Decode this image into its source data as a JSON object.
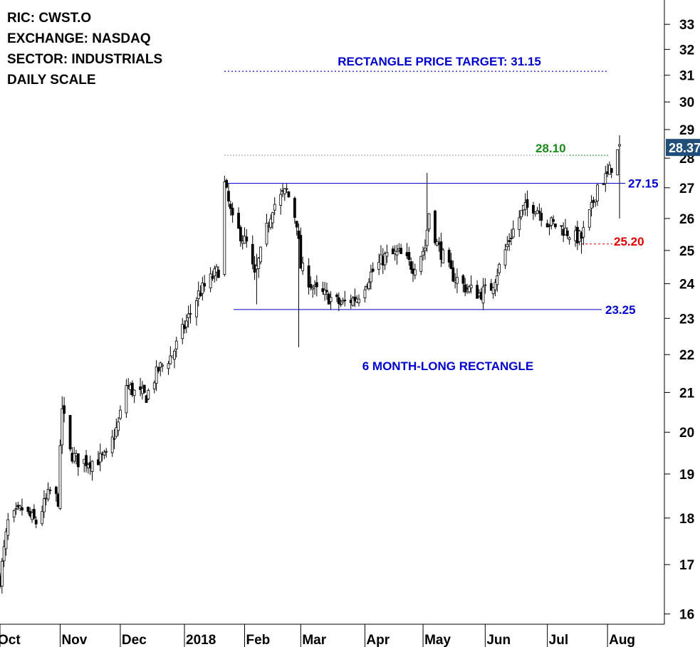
{
  "info": {
    "ric": "RIC: CWST.O",
    "exchange": "EXCHANGE: NASDAQ",
    "sector": "SECTOR: INDUSTRIALS",
    "scale": "DAILY SCALE"
  },
  "annotations": {
    "target_label": "RECTANGLE PRICE TARGET: 31.15",
    "pattern_label": "6 MONTH-LONG RECTANGLE",
    "resistance_label": "27.15",
    "support_label": "23.25",
    "level_28_label": "28.10",
    "level_25_label": "25.20",
    "last_price_label": "28.37"
  },
  "colors": {
    "blue": "#0000cc",
    "green": "#1a8a1a",
    "red": "#e00000",
    "last_price_bg": "#1f4e79",
    "candle": "#000000"
  },
  "chart_data": {
    "type": "candlestick",
    "title": "",
    "y_scale": "log",
    "ylim": [
      15.8,
      34.0
    ],
    "yticks": [
      16,
      17,
      18,
      19,
      20,
      21,
      22,
      23,
      24,
      25,
      26,
      27,
      28,
      29,
      30,
      31,
      32,
      33
    ],
    "x_labels": [
      "Oct",
      "Nov",
      "Dec",
      "2018",
      "Feb",
      "Mar",
      "Apr",
      "May",
      "Jun",
      "Jul",
      "Aug"
    ],
    "date_range": [
      "2017-10-02",
      "2018-08-07"
    ],
    "levels": {
      "price_target": 31.15,
      "resistance": 27.15,
      "support": 23.25,
      "level_green": 28.1,
      "level_red": 25.2,
      "last_price": 28.37
    },
    "price_path": [
      [
        "2017-10-02",
        16.7
      ],
      [
        "2017-10-06",
        17.9
      ],
      [
        "2017-10-13",
        18.2
      ],
      [
        "2017-10-20",
        17.9
      ],
      [
        "2017-10-27",
        18.6
      ],
      [
        "2017-10-31",
        18.4
      ],
      [
        "2017-11-02",
        20.6
      ],
      [
        "2017-11-06",
        19.5
      ],
      [
        "2017-11-10",
        19.3
      ],
      [
        "2017-11-17",
        19.3
      ],
      [
        "2017-11-24",
        19.4
      ],
      [
        "2017-11-30",
        20.2
      ],
      [
        "2017-12-04",
        21.2
      ],
      [
        "2017-12-08",
        21.0
      ],
      [
        "2017-12-14",
        20.9
      ],
      [
        "2017-12-20",
        21.6
      ],
      [
        "2017-12-27",
        22.0
      ],
      [
        "2018-01-03",
        22.9
      ],
      [
        "2018-01-09",
        23.7
      ],
      [
        "2018-01-16",
        24.2
      ],
      [
        "2018-01-19",
        24.4
      ],
      [
        "2018-01-22",
        27.1
      ],
      [
        "2018-01-26",
        25.9
      ],
      [
        "2018-02-02",
        25.2
      ],
      [
        "2018-02-06",
        24.2
      ],
      [
        "2018-02-09",
        24.9
      ],
      [
        "2018-02-15",
        26.4
      ],
      [
        "2018-02-22",
        26.9
      ],
      [
        "2018-02-27",
        25.9
      ],
      [
        "2018-03-01",
        24.5
      ],
      [
        "2018-03-08",
        23.8
      ],
      [
        "2018-03-15",
        23.6
      ],
      [
        "2018-03-21",
        23.4
      ],
      [
        "2018-03-29",
        23.6
      ],
      [
        "2018-04-05",
        24.3
      ],
      [
        "2018-04-12",
        24.8
      ],
      [
        "2018-04-19",
        24.9
      ],
      [
        "2018-04-26",
        24.5
      ],
      [
        "2018-05-02",
        25.1
      ],
      [
        "2018-05-04",
        26.2
      ],
      [
        "2018-05-08",
        25.2
      ],
      [
        "2018-05-15",
        24.3
      ],
      [
        "2018-05-22",
        23.9
      ],
      [
        "2018-05-29",
        23.7
      ],
      [
        "2018-06-04",
        23.9
      ],
      [
        "2018-06-08",
        24.5
      ],
      [
        "2018-06-14",
        25.5
      ],
      [
        "2018-06-20",
        26.3
      ],
      [
        "2018-06-26",
        26.4
      ],
      [
        "2018-07-02",
        25.9
      ],
      [
        "2018-07-09",
        25.7
      ],
      [
        "2018-07-16",
        25.4
      ],
      [
        "2018-07-19",
        25.4
      ],
      [
        "2018-07-24",
        26.3
      ],
      [
        "2018-07-27",
        27.1
      ],
      [
        "2018-08-01",
        27.4
      ],
      [
        "2018-08-06",
        28.2
      ],
      [
        "2018-08-07",
        28.37
      ]
    ],
    "spikes": [
      [
        "2017-11-02",
        20.9,
        19.6
      ],
      [
        "2018-01-22",
        27.4,
        25.8
      ],
      [
        "2018-02-07",
        24.9,
        23.4
      ],
      [
        "2018-02-28",
        25.1,
        22.2
      ],
      [
        "2018-05-03",
        27.5,
        25.1
      ],
      [
        "2018-07-19",
        25.6,
        24.9
      ],
      [
        "2018-08-07",
        28.8,
        26.0
      ]
    ]
  }
}
